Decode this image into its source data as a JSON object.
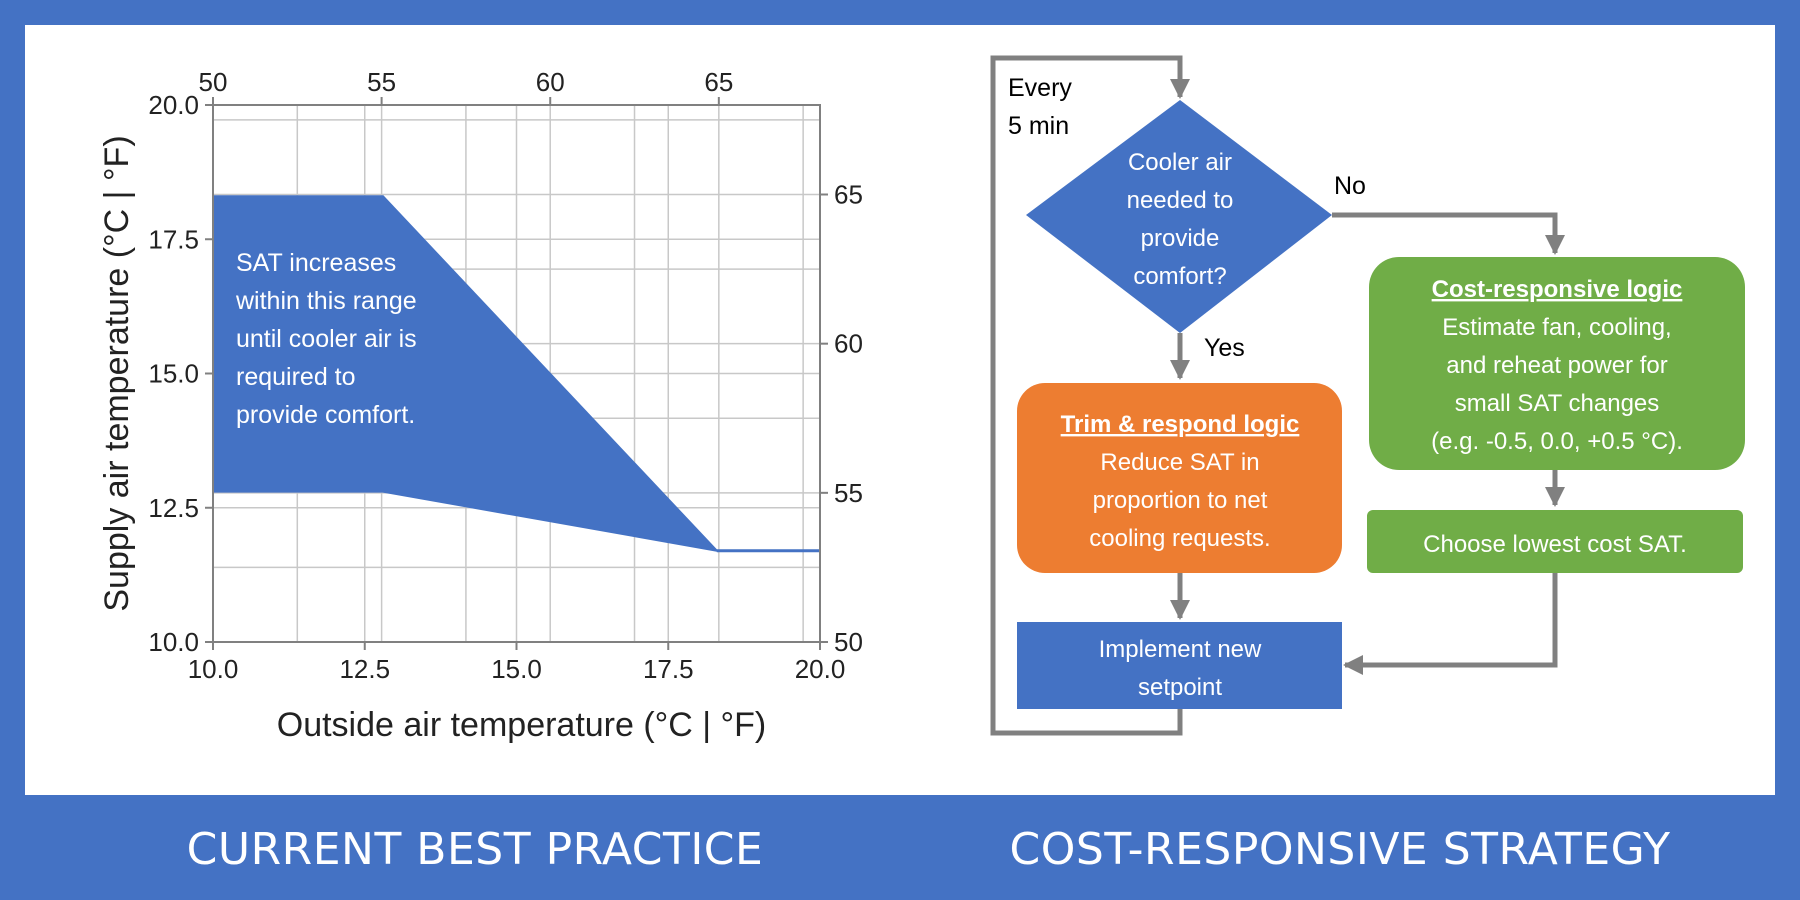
{
  "left_panel": {
    "caption": "CURRENT BEST PRACTICE",
    "chart_data": {
      "type": "area",
      "xlabel": "Outside air temperature (°C | °F)",
      "ylabel": "Supply air temperature (°C | °F)",
      "xlim": [
        10.0,
        20.0
      ],
      "ylim": [
        10.0,
        20.0
      ],
      "x_ticks": [
        "10.0",
        "12.5",
        "15.0",
        "17.5",
        "20.0"
      ],
      "y_ticks": [
        "10.0",
        "12.5",
        "15.0",
        "17.5",
        "20.0"
      ],
      "x_ticks_top_f": [
        "50",
        "55",
        "60",
        "65"
      ],
      "y_ticks_right_f": [
        "50",
        "55",
        "60",
        "65"
      ],
      "grid": true,
      "band_upper": {
        "x": [
          10.0,
          12.8,
          18.3,
          20.0
        ],
        "y": [
          18.3,
          18.3,
          11.7,
          11.7
        ]
      },
      "band_lower": {
        "x": [
          10.0,
          12.8,
          18.3,
          20.0
        ],
        "y": [
          12.8,
          12.8,
          11.7,
          11.7
        ]
      },
      "annotation": [
        "SAT increases",
        "within this range",
        "until cooler air is",
        "required to",
        "provide comfort."
      ]
    }
  },
  "right_panel": {
    "caption": "COST-RESPONSIVE STRATEGY",
    "loop_label": [
      "Every",
      "5 min"
    ],
    "decision": [
      "Cooler air",
      "needed to",
      "provide",
      "comfort?"
    ],
    "no_label": "No",
    "yes_label": "Yes",
    "trim": {
      "title": "Trim & respond logic",
      "lines": [
        "Reduce SAT in",
        "proportion to net",
        "cooling requests."
      ]
    },
    "cost": {
      "title": "Cost-responsive logic",
      "lines": [
        "Estimate fan, cooling,",
        "and reheat power for",
        "small SAT changes",
        "(e.g. -0.5, 0.0, +0.5 °C)."
      ]
    },
    "choose": "Choose lowest cost SAT.",
    "implement": [
      "Implement new",
      "setpoint"
    ],
    "colors": {
      "blue": "#4472c4",
      "orange": "#ed7d31",
      "green": "#70ad47",
      "arrow": "#808080"
    }
  }
}
